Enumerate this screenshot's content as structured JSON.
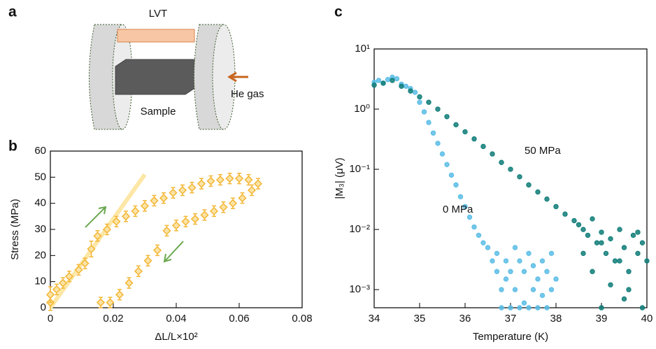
{
  "panels": [
    "a",
    "b",
    "c"
  ],
  "diagram": {
    "labels": [
      "LVT",
      "Sample",
      "He gas"
    ]
  },
  "chart_data": [
    {
      "type": "scatter",
      "xlabel": "ΔL/L×10²",
      "ylabel": "Stress (MPa)",
      "xlim": [
        0,
        0.08
      ],
      "ylim": [
        0,
        60
      ],
      "xticks": [
        0,
        0.02,
        0.04,
        0.06,
        0.08
      ],
      "yticks": [
        0,
        10,
        20,
        30,
        40,
        50,
        60
      ],
      "fit": {
        "x": [
          0,
          0.03
        ],
        "values": [
          0,
          51
        ],
        "color": "#fde7a6"
      },
      "series": [
        {
          "color": "#f3b634",
          "x": [
            0,
            0,
            0.002,
            0.004,
            0.006,
            0.009,
            0.011,
            0.013,
            0.015,
            0.018,
            0.021,
            0.024,
            0.027,
            0.03,
            0.033,
            0.036,
            0.039,
            0.042,
            0.045,
            0.048,
            0.051,
            0.054,
            0.057,
            0.06,
            0.063,
            0.066,
            0.064,
            0.061,
            0.058,
            0.055,
            0.052,
            0.049,
            0.046,
            0.043,
            0.04,
            0.037,
            0.034,
            0.031,
            0.028,
            0.025,
            0.022,
            0.019,
            0.016
          ],
          "values": [
            2,
            5,
            7,
            9.5,
            12,
            14.5,
            17,
            22.5,
            27.5,
            30,
            33,
            35,
            37,
            39,
            41,
            42,
            44,
            45,
            46,
            47.5,
            48.5,
            49,
            49.5,
            49.5,
            49,
            47.5,
            45,
            42,
            40,
            38.5,
            37,
            35.5,
            34,
            33,
            31.5,
            29.5,
            22,
            18,
            14,
            9.5,
            5,
            2,
            2
          ],
          "errors": [
            3,
            3,
            2,
            2,
            2,
            2,
            2,
            3,
            2,
            2,
            2,
            2,
            2,
            2,
            2,
            2,
            2,
            2,
            2,
            2,
            2,
            2,
            2,
            2,
            2,
            2,
            2,
            2,
            2,
            2,
            2,
            2,
            2,
            2,
            2,
            2,
            2,
            2,
            2,
            2,
            2,
            2,
            2
          ]
        }
      ]
    },
    {
      "type": "scatter",
      "log_y": true,
      "xlabel": "Temperature (K)",
      "ylabel": "|M₃| (μV)",
      "xlim": [
        34,
        40
      ],
      "ylim": [
        0.0005,
        10
      ],
      "xticks": [
        34,
        35,
        36,
        37,
        38,
        39,
        40
      ],
      "yticks": [
        {
          "value": 0.001,
          "label": "10⁻³"
        },
        {
          "value": 0.01,
          "label": "10⁻²"
        },
        {
          "value": 0.1,
          "label": "10⁻¹"
        },
        {
          "value": 1,
          "label": "10⁰"
        },
        {
          "value": 10,
          "label": "10¹"
        }
      ],
      "series": [
        {
          "name": "0 MPa",
          "color": "#5bbde6",
          "x": [
            34.0,
            34.1,
            34.2,
            34.3,
            34.4,
            34.5,
            34.6,
            34.7,
            34.8,
            34.9,
            35.0,
            35.1,
            35.2,
            35.3,
            35.4,
            35.5,
            35.6,
            35.7,
            35.8,
            35.9,
            36.0,
            36.1,
            36.2,
            36.3,
            36.4,
            36.5,
            36.6,
            36.7,
            36.7,
            36.8,
            36.9,
            36.9,
            37.0,
            37.1,
            37.1,
            37.2,
            37.3,
            37.3,
            37.4,
            37.5,
            37.5,
            37.6,
            37.7,
            37.7,
            37.8,
            37.9,
            37.9,
            38.0,
            36.8,
            37.0,
            37.2,
            37.4,
            37.6,
            37.8
          ],
          "values": [
            2.8,
            3.0,
            2.7,
            3.1,
            3.4,
            3.2,
            2.6,
            2.4,
            2.2,
            1.9,
            1.3,
            0.9,
            0.6,
            0.4,
            0.27,
            0.18,
            0.12,
            0.08,
            0.055,
            0.035,
            0.024,
            0.016,
            0.011,
            0.008,
            0.006,
            0.005,
            0.003,
            0.002,
            0.004,
            0.001,
            0.003,
            0.0015,
            0.002,
            0.005,
            0.001,
            0.003,
            0.0006,
            0.002,
            0.004,
            0.001,
            0.0025,
            0.0015,
            0.003,
            0.0008,
            0.002,
            0.001,
            0.004,
            0.0015,
            0.0005,
            0.0005,
            0.0005,
            0.0005,
            0.0005,
            0.0005
          ]
        },
        {
          "name": "50 MPa",
          "color": "#0f7d78",
          "x": [
            34.0,
            34.2,
            34.4,
            34.6,
            34.8,
            35.0,
            35.2,
            35.4,
            35.6,
            35.8,
            36.0,
            36.2,
            36.4,
            36.6,
            36.8,
            37.0,
            37.2,
            37.4,
            37.6,
            37.8,
            38.0,
            38.2,
            38.4,
            38.5,
            38.6,
            38.7,
            38.8,
            38.9,
            39.0,
            39.1,
            39.2,
            39.3,
            39.4,
            39.5,
            39.6,
            39.7,
            39.8,
            39.9,
            40.0,
            38.6,
            38.8,
            39.0,
            39.2,
            39.4,
            39.6,
            39.8,
            39.0,
            39.5,
            39.9
          ],
          "values": [
            2.5,
            2.7,
            3.0,
            2.4,
            2.0,
            1.6,
            1.3,
            1.0,
            0.75,
            0.55,
            0.42,
            0.32,
            0.24,
            0.18,
            0.13,
            0.1,
            0.075,
            0.055,
            0.042,
            0.032,
            0.024,
            0.018,
            0.014,
            0.012,
            0.01,
            0.008,
            0.015,
            0.006,
            0.009,
            0.004,
            0.007,
            0.003,
            0.01,
            0.005,
            0.002,
            0.008,
            0.004,
            0.006,
            0.003,
            0.004,
            0.002,
            0.006,
            0.0012,
            0.003,
            0.001,
            0.009,
            0.0005,
            0.0007,
            0.0005
          ]
        }
      ]
    }
  ]
}
